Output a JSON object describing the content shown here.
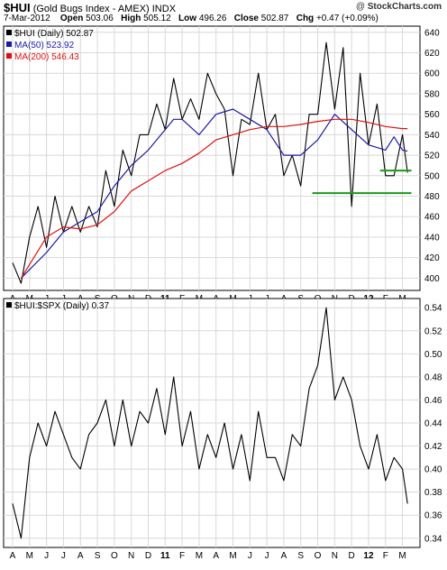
{
  "header": {
    "symbol": "$HUI",
    "description": "(Gold Bugs Index - AMEX)",
    "exchange": "INDX",
    "date": "7-Mar-2012",
    "open_label": "Open",
    "open": "503.06",
    "high_label": "High",
    "high": "505.12",
    "low_label": "Low",
    "low": "496.26",
    "close_label": "Close",
    "close": "502.87",
    "chg_label": "Chg",
    "chg": "+0.47 (+0.09%)",
    "credit_prefix": "@ ",
    "credit_site": "StockCharts.com"
  },
  "chart_data": [
    {
      "type": "line",
      "legend": [
        "$HUI (Daily) 502.87",
        "MA(50) 523.92",
        "MA(200) 546.43"
      ],
      "x_tick_labels": [
        "A",
        "M",
        "J",
        "J",
        "A",
        "S",
        "O",
        "N",
        "D",
        "11",
        "F",
        "M",
        "A",
        "M",
        "J",
        "J",
        "A",
        "S",
        "O",
        "N",
        "D",
        "12",
        "F",
        "M"
      ],
      "y_ticks": [
        400,
        420,
        440,
        460,
        480,
        500,
        520,
        540,
        560,
        580,
        600,
        620,
        640
      ],
      "ylim": [
        388,
        646
      ],
      "grid": true,
      "legend_position": "top-left",
      "colors": {
        "price": "#000000",
        "ma50": "#1a1aa6",
        "ma200": "#e01010",
        "support": "#1a9a1a",
        "ma_up_bar": "#c8102e"
      },
      "support_lines": [
        {
          "y": 483,
          "x_start": "O",
          "x_end": "M"
        },
        {
          "y": 505,
          "x_start": "F",
          "x_end": "M"
        }
      ],
      "series": [
        {
          "name": "$HUI (Daily) 502.87",
          "x": [
            0,
            0.5,
            1,
            1.5,
            2,
            2.5,
            3,
            3.5,
            4,
            4.5,
            5,
            5.5,
            6,
            6.5,
            7,
            7.5,
            8,
            8.5,
            9,
            9.5,
            10,
            10.5,
            11,
            11.5,
            12,
            12.5,
            13,
            13.5,
            14,
            14.5,
            15,
            15.5,
            16,
            16.5,
            17,
            17.5,
            18,
            18.5,
            19,
            19.5,
            20,
            20.5,
            21,
            21.5,
            22,
            22.5,
            23,
            23.3
          ],
          "values": [
            415,
            395,
            440,
            470,
            430,
            480,
            445,
            470,
            445,
            470,
            450,
            505,
            470,
            525,
            500,
            540,
            540,
            570,
            545,
            595,
            555,
            575,
            555,
            600,
            580,
            565,
            500,
            555,
            550,
            600,
            545,
            560,
            500,
            520,
            490,
            560,
            560,
            630,
            565,
            625,
            470,
            600,
            530,
            570,
            500,
            500,
            540,
            503
          ]
        },
        {
          "name": "MA(50) 523.92",
          "x": [
            0.5,
            2,
            3,
            4,
            5,
            6,
            7,
            8,
            9,
            9.5,
            10,
            11,
            12,
            13,
            14,
            15,
            16,
            17,
            18,
            19,
            20,
            21,
            22,
            22.5,
            23,
            23.3
          ],
          "values": [
            400,
            425,
            445,
            455,
            465,
            490,
            510,
            525,
            545,
            555,
            555,
            540,
            560,
            565,
            555,
            545,
            520,
            520,
            535,
            560,
            545,
            530,
            525,
            538,
            525,
            524
          ]
        },
        {
          "name": "MA(200) 546.43",
          "x": [
            0.5,
            2,
            3,
            4,
            5,
            6,
            7,
            8,
            9,
            10,
            11,
            12,
            13,
            14,
            15,
            16,
            17,
            18,
            19,
            20,
            21,
            22,
            23,
            23.3
          ],
          "values": [
            400,
            440,
            450,
            448,
            452,
            465,
            485,
            495,
            505,
            512,
            522,
            535,
            540,
            545,
            548,
            548,
            550,
            553,
            555,
            555,
            552,
            548,
            546,
            546
          ]
        }
      ]
    },
    {
      "type": "line",
      "legend": [
        "$HUI:$SPX (Daily) 0.37"
      ],
      "x_tick_labels": [
        "A",
        "M",
        "J",
        "J",
        "A",
        "S",
        "O",
        "N",
        "D",
        "11",
        "F",
        "M",
        "A",
        "M",
        "J",
        "J",
        "A",
        "S",
        "O",
        "N",
        "D",
        "12",
        "F",
        "M"
      ],
      "y_ticks": [
        0.34,
        0.36,
        0.38,
        0.4,
        0.42,
        0.44,
        0.46,
        0.48,
        0.5,
        0.52,
        0.54
      ],
      "ylim": [
        0.332,
        0.548
      ],
      "grid": true,
      "legend_position": "top-left",
      "series": [
        {
          "name": "$HUI:$SPX (Daily) 0.37",
          "x": [
            0,
            0.5,
            1,
            1.5,
            2,
            2.5,
            3,
            3.5,
            4,
            4.5,
            5,
            5.5,
            6,
            6.5,
            7,
            7.5,
            8,
            8.5,
            9,
            9.5,
            10,
            10.5,
            11,
            11.5,
            12,
            12.5,
            13,
            13.5,
            14,
            14.5,
            15,
            15.5,
            16,
            16.5,
            17,
            17.5,
            18,
            18.5,
            19,
            19.5,
            20,
            20.5,
            21,
            21.5,
            22,
            22.5,
            23,
            23.3
          ],
          "values": [
            0.37,
            0.34,
            0.41,
            0.44,
            0.42,
            0.45,
            0.43,
            0.41,
            0.4,
            0.43,
            0.44,
            0.46,
            0.42,
            0.46,
            0.42,
            0.45,
            0.44,
            0.47,
            0.43,
            0.48,
            0.42,
            0.45,
            0.4,
            0.43,
            0.41,
            0.44,
            0.4,
            0.43,
            0.39,
            0.45,
            0.41,
            0.41,
            0.39,
            0.43,
            0.42,
            0.47,
            0.49,
            0.54,
            0.46,
            0.48,
            0.46,
            0.42,
            0.4,
            0.43,
            0.39,
            0.41,
            0.4,
            0.37
          ]
        }
      ]
    }
  ]
}
